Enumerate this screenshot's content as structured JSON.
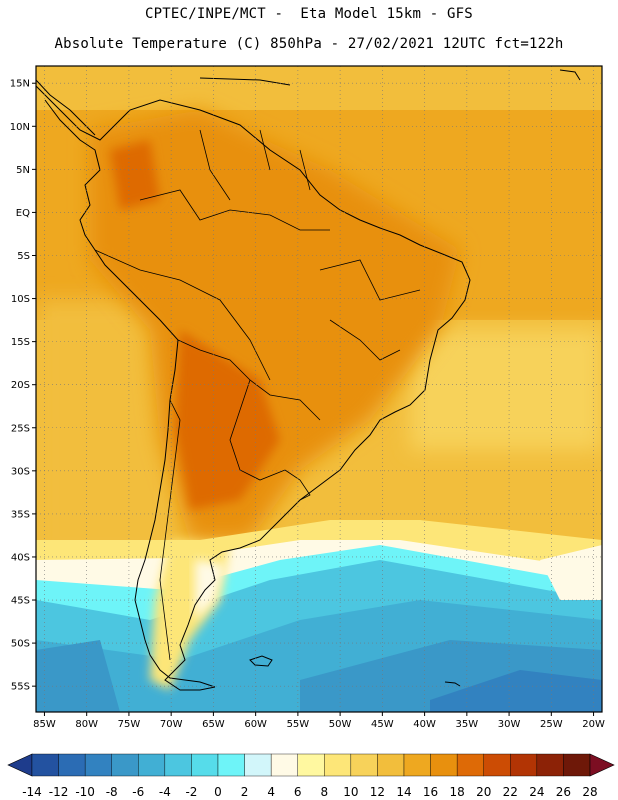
{
  "header": {
    "line1": "CPTEC/INPE/MCT -  Eta Model 15km - GFS",
    "line2": "Absolute Temperature (C) 850hPa - 27/02/2021 12UTC fct=122h"
  },
  "map": {
    "lat_range": [
      -58,
      17
    ],
    "lon_range": [
      -86,
      -19
    ],
    "lat_ticks": [
      {
        "value": 15,
        "label": "15N"
      },
      {
        "value": 10,
        "label": "10N"
      },
      {
        "value": 5,
        "label": "5N"
      },
      {
        "value": 0,
        "label": "EQ"
      },
      {
        "value": -5,
        "label": "5S"
      },
      {
        "value": -10,
        "label": "10S"
      },
      {
        "value": -15,
        "label": "15S"
      },
      {
        "value": -20,
        "label": "20S"
      },
      {
        "value": -25,
        "label": "25S"
      },
      {
        "value": -30,
        "label": "30S"
      },
      {
        "value": -35,
        "label": "35S"
      },
      {
        "value": -40,
        "label": "40S"
      },
      {
        "value": -45,
        "label": "45S"
      },
      {
        "value": -50,
        "label": "50S"
      },
      {
        "value": -55,
        "label": "55S"
      }
    ],
    "lon_ticks": [
      {
        "value": -85,
        "label": "85W"
      },
      {
        "value": -80,
        "label": "80W"
      },
      {
        "value": -75,
        "label": "75W"
      },
      {
        "value": -70,
        "label": "70W"
      },
      {
        "value": -65,
        "label": "65W"
      },
      {
        "value": -60,
        "label": "60W"
      },
      {
        "value": -55,
        "label": "55W"
      },
      {
        "value": -50,
        "label": "50W"
      },
      {
        "value": -45,
        "label": "45W"
      },
      {
        "value": -40,
        "label": "40W"
      },
      {
        "value": -35,
        "label": "35W"
      },
      {
        "value": -30,
        "label": "30W"
      },
      {
        "value": -25,
        "label": "25W"
      },
      {
        "value": -20,
        "label": "20W"
      }
    ],
    "grid": true
  },
  "colorbar": {
    "levels": [
      -14,
      -12,
      -10,
      -8,
      -6,
      -4,
      -2,
      0,
      2,
      4,
      6,
      8,
      10,
      12,
      14,
      16,
      18,
      20,
      22,
      24,
      26,
      28
    ],
    "labels": [
      "-14",
      "-12",
      "-10",
      "-8",
      "-6",
      "-4",
      "-2",
      "0",
      "2",
      "4",
      "6",
      "8",
      "10",
      "12",
      "14",
      "16",
      "18",
      "20",
      "22",
      "24",
      "26",
      "28"
    ],
    "colors": [
      "#1e3c8c",
      "#2352a0",
      "#2b6cb4",
      "#3282c0",
      "#3a98c8",
      "#41afd4",
      "#4cc6e0",
      "#56dcea",
      "#6ef4f8",
      "#d2f6fa",
      "#fffae6",
      "#fff8a0",
      "#fde678",
      "#f7d25a",
      "#f2be3c",
      "#eea820",
      "#e8900e",
      "#de6a06",
      "#cc4c04",
      "#b23404",
      "#8c2206",
      "#6e1808",
      "#7c0e22"
    ]
  }
}
